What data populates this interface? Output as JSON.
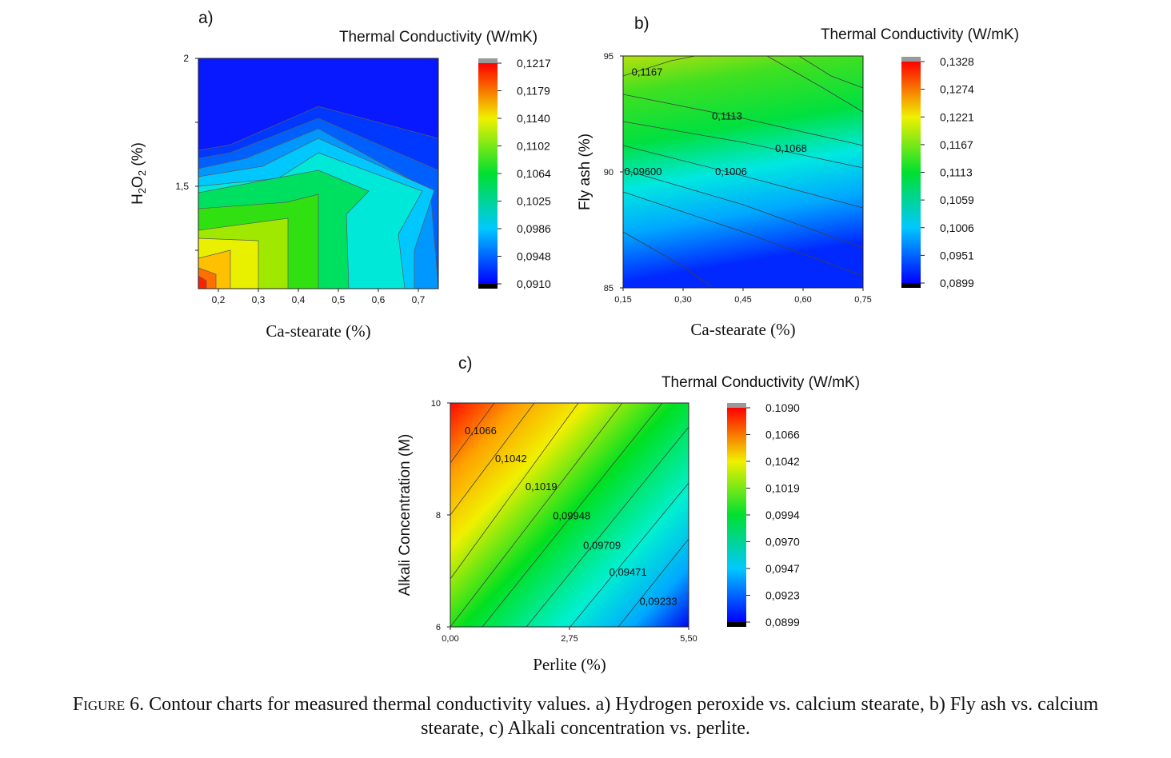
{
  "figure": {
    "caption_label": "Figure 6.",
    "caption_text_line1": "Contour charts for measured thermal conductivity values. a) Hydrogen peroxide vs. calcium stearate, b) Fly ash vs. calcium",
    "caption_text_line2": "stearate, c) Alkali concentration vs. perlite."
  },
  "chart_data": [
    {
      "panel": "a)",
      "type": "heatmap",
      "style": "banded-contour",
      "title": "Thermal Conductivity (W/mK)",
      "xlabel": "Ca-stearate (%)",
      "ylabel": "H2O2 (%)",
      "xlim": [
        0.15,
        0.75
      ],
      "ylim": [
        1.1,
        2.0
      ],
      "x_ticks": [
        0.2,
        0.3,
        0.4,
        0.5,
        0.6,
        0.7
      ],
      "x_tick_labels": [
        "0,2",
        "0,3",
        "0,4",
        "0,5",
        "0,6",
        "0,7"
      ],
      "y_ticks": [
        1.5,
        2.0
      ],
      "y_tick_labels": [
        "1,5",
        "2"
      ],
      "colorbar_levels": [
        0.1217,
        0.1179,
        0.114,
        0.1102,
        0.1064,
        0.1025,
        0.0986,
        0.0948,
        0.091
      ],
      "colorbar_labels": [
        "0,1217",
        "0,1179",
        "0,1140",
        "0,1102",
        "0,1064",
        "0,1025",
        "0,0986",
        "0,0948",
        "0,0910"
      ],
      "contour_labels": []
    },
    {
      "panel": "b)",
      "type": "heatmap",
      "style": "smooth-contour",
      "title": "Thermal Conductivity (W/mK)",
      "xlabel": "Ca-stearate (%)",
      "ylabel": "Fly ash (%)",
      "xlim": [
        0.15,
        0.75
      ],
      "ylim": [
        85,
        95
      ],
      "x_ticks": [
        0.15,
        0.3,
        0.45,
        0.6,
        0.75
      ],
      "x_tick_labels": [
        "0,15",
        "0,30",
        "0,45",
        "0,60",
        "0,75"
      ],
      "y_ticks": [
        85,
        90,
        95
      ],
      "y_tick_labels": [
        "85",
        "90",
        "95"
      ],
      "colorbar_levels": [
        0.1328,
        0.1274,
        0.1221,
        0.1167,
        0.1113,
        0.1059,
        0.1006,
        0.0951,
        0.0899
      ],
      "colorbar_labels": [
        "0,1328",
        "0,1274",
        "0,1221",
        "0,1167",
        "0,1113",
        "0,1059",
        "0,1006",
        "0,0951",
        "0,0899"
      ],
      "contour_labels": [
        {
          "text": "0,1167",
          "x": 0.21,
          "y": 94.3
        },
        {
          "text": "0,1113",
          "x": 0.41,
          "y": 92.4
        },
        {
          "text": "0,1068",
          "x": 0.57,
          "y": 91.0
        },
        {
          "text": "0,09600",
          "x": 0.2,
          "y": 90.0
        },
        {
          "text": "0,1006",
          "x": 0.42,
          "y": 90.0
        }
      ]
    },
    {
      "panel": "c)",
      "type": "heatmap",
      "style": "smooth-contour",
      "title": "Thermal Conductivity (W/mK)",
      "xlabel": "Perlite (%)",
      "ylabel": "Alkali Concentration (M)",
      "xlim": [
        0,
        5.5
      ],
      "ylim": [
        6,
        10
      ],
      "x_ticks": [
        0,
        2.75,
        5.5
      ],
      "x_tick_labels": [
        "0,00",
        "2,75",
        "5,50"
      ],
      "y_ticks": [
        6,
        8,
        10
      ],
      "y_tick_labels": [
        "6",
        "8",
        "10"
      ],
      "colorbar_levels": [
        0.109,
        0.1066,
        0.1042,
        0.1019,
        0.0994,
        0.097,
        0.0947,
        0.0923,
        0.0899
      ],
      "colorbar_labels": [
        "0.1090",
        "0,1066",
        "0,1042",
        "0,1019",
        "0,0994",
        "0,0970",
        "0,0947",
        "0,0923",
        "0,0899"
      ],
      "contour_labels": [
        {
          "text": "0,1066",
          "x": 0.7,
          "y": 9.5
        },
        {
          "text": "0,1042",
          "x": 1.4,
          "y": 9.0
        },
        {
          "text": "0,1019",
          "x": 2.1,
          "y": 8.5
        },
        {
          "text": "0,09948",
          "x": 2.8,
          "y": 7.98
        },
        {
          "text": "0,09709",
          "x": 3.5,
          "y": 7.45
        },
        {
          "text": "0,09471",
          "x": 4.1,
          "y": 6.97
        },
        {
          "text": "0,09233",
          "x": 4.8,
          "y": 6.45
        }
      ]
    }
  ]
}
